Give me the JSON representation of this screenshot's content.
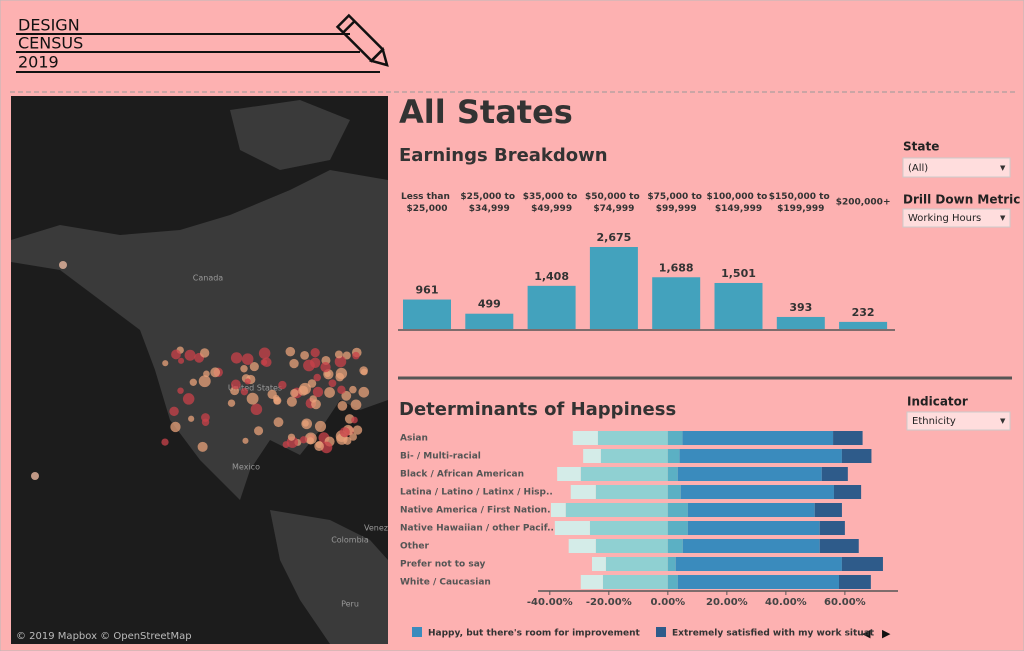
{
  "header": {
    "logo": [
      "DESIGN",
      "CENSUS",
      "2019"
    ]
  },
  "title": "All States",
  "map": {
    "labels": [
      "Canada",
      "United States",
      "Mexico",
      "Venez",
      "Colombia",
      "Peru"
    ],
    "credit": "© 2019 Mapbox © OpenStreetMap"
  },
  "filters": [
    {
      "label": "State",
      "value": "(All)"
    },
    {
      "label": "Drill Down Metric",
      "value": "Working Hours"
    },
    {
      "label": "Indicator",
      "value": "Ethnicity"
    }
  ],
  "chart_data": [
    {
      "type": "bar",
      "title": "Earnings Breakdown",
      "categories": [
        "Less than $25,000",
        "$25,000 to $34,999",
        "$35,000 to $49,999",
        "$50,000 to $74,999",
        "$75,000 to $99,999",
        "$100,000 to $149,999",
        "$150,000 to $199,999",
        "$200,000+"
      ],
      "values": [
        961,
        499,
        1408,
        2675,
        1688,
        1501,
        393,
        232
      ],
      "value_labels": [
        "961",
        "499",
        "1,408",
        "2,675",
        "1,688",
        "1,501",
        "393",
        "232"
      ],
      "color": "#43a2bd"
    },
    {
      "type": "diverging-hbar",
      "title": "Determinants of Happiness",
      "categories": [
        "Asian",
        "Bi- / Multi-racial",
        "Black / African American",
        "Latina / Latino / Latinx / Hisp..",
        "Native America / First Nation..",
        "Native Hawaiian / other Pacif..",
        "Other",
        "Prefer not to say",
        "White / Caucasian"
      ],
      "series": [
        {
          "color": "#d4ece8",
          "values": [
            -8.5,
            -6,
            -8,
            -8.5,
            -5,
            -11.9,
            -9.2,
            -4.7,
            -7.5
          ]
        },
        {
          "color": "#8fd0d2",
          "values": [
            -23.7,
            -22.7,
            -29.5,
            -24.4,
            -34.6,
            -26.4,
            -24.4,
            -21,
            -22
          ]
        },
        {
          "color": "#5bb0c4",
          "values": [
            5,
            4,
            3.4,
            4.4,
            6.8,
            6.8,
            5.1,
            2.7,
            3.4
          ]
        },
        {
          "name": "Happy, but there's room for improvement",
          "color": "#3a8bbd",
          "values": [
            51,
            55,
            48.8,
            51.9,
            43,
            44.7,
            46.4,
            56.3,
            54.6
          ]
        },
        {
          "name": "Extremely satisfied with my work situat",
          "color": "#2e5b8a",
          "values": [
            10,
            10,
            8.8,
            9.2,
            9.2,
            8.5,
            13.2,
            13.9,
            10.8
          ]
        }
      ],
      "xlim": [
        -44,
        78
      ],
      "xticks": [
        {
          "value": -40,
          "label": "-40.00%"
        },
        {
          "value": -20,
          "label": "-20.00%"
        },
        {
          "value": 0,
          "label": "0.00%"
        },
        {
          "value": 20,
          "label": "20.00%"
        },
        {
          "value": 40,
          "label": "40.00%"
        },
        {
          "value": 60,
          "label": "60.00%"
        }
      ]
    }
  ]
}
